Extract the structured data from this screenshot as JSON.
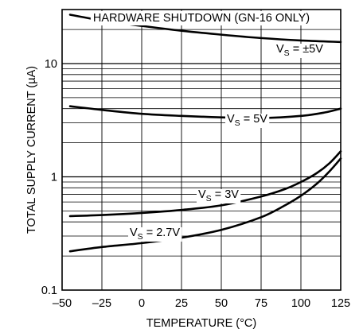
{
  "chart_data": {
    "type": "line",
    "title": "HARDWARE SHUTDOWN (GN-16 ONLY)",
    "xlabel": "TEMPERATURE (°C)",
    "ylabel": "TOTAL SUPPLY CURRENT (µA)",
    "xlim": [
      -50,
      125
    ],
    "ylim": [
      0.1,
      30
    ],
    "yscale": "log",
    "grid": true,
    "x_ticks": [
      -50,
      -25,
      0,
      25,
      50,
      75,
      100,
      125
    ],
    "x_tick_labels": [
      "–50",
      "–25",
      "0",
      "25",
      "50",
      "75",
      "100",
      "125"
    ],
    "y_ticks": [
      0.1,
      1,
      10
    ],
    "y_tick_labels": [
      "0.1",
      "1",
      "10"
    ],
    "series": [
      {
        "name": "VS = ±5V",
        "label_main": "V",
        "label_sub": "S",
        "label_rest": " = ±5V",
        "x": [
          -45,
          -25,
          0,
          25,
          50,
          75,
          100,
          125
        ],
        "y": [
          27,
          24,
          21.5,
          19.5,
          18,
          16.8,
          16.0,
          15.5
        ]
      },
      {
        "name": "VS = 5V",
        "label_main": "V",
        "label_sub": "S",
        "label_rest": " = 5V",
        "x": [
          -45,
          -25,
          0,
          25,
          50,
          75,
          100,
          115,
          125
        ],
        "y": [
          4.2,
          3.9,
          3.6,
          3.45,
          3.35,
          3.3,
          3.45,
          3.7,
          4.0
        ]
      },
      {
        "name": "VS = 3V",
        "label_main": "V",
        "label_sub": "S",
        "label_rest": " = 3V",
        "x": [
          -45,
          -25,
          0,
          25,
          50,
          75,
          90,
          100,
          110,
          118,
          125
        ],
        "y": [
          0.45,
          0.46,
          0.48,
          0.51,
          0.56,
          0.67,
          0.78,
          0.9,
          1.08,
          1.32,
          1.68
        ]
      },
      {
        "name": "VS = 2.7V",
        "label_main": "V",
        "label_sub": "S",
        "label_rest": " = 2.7V",
        "x": [
          -45,
          -25,
          0,
          25,
          50,
          75,
          90,
          100,
          110,
          118,
          125
        ],
        "y": [
          0.22,
          0.24,
          0.26,
          0.29,
          0.34,
          0.44,
          0.56,
          0.68,
          0.87,
          1.12,
          1.45
        ]
      }
    ]
  }
}
